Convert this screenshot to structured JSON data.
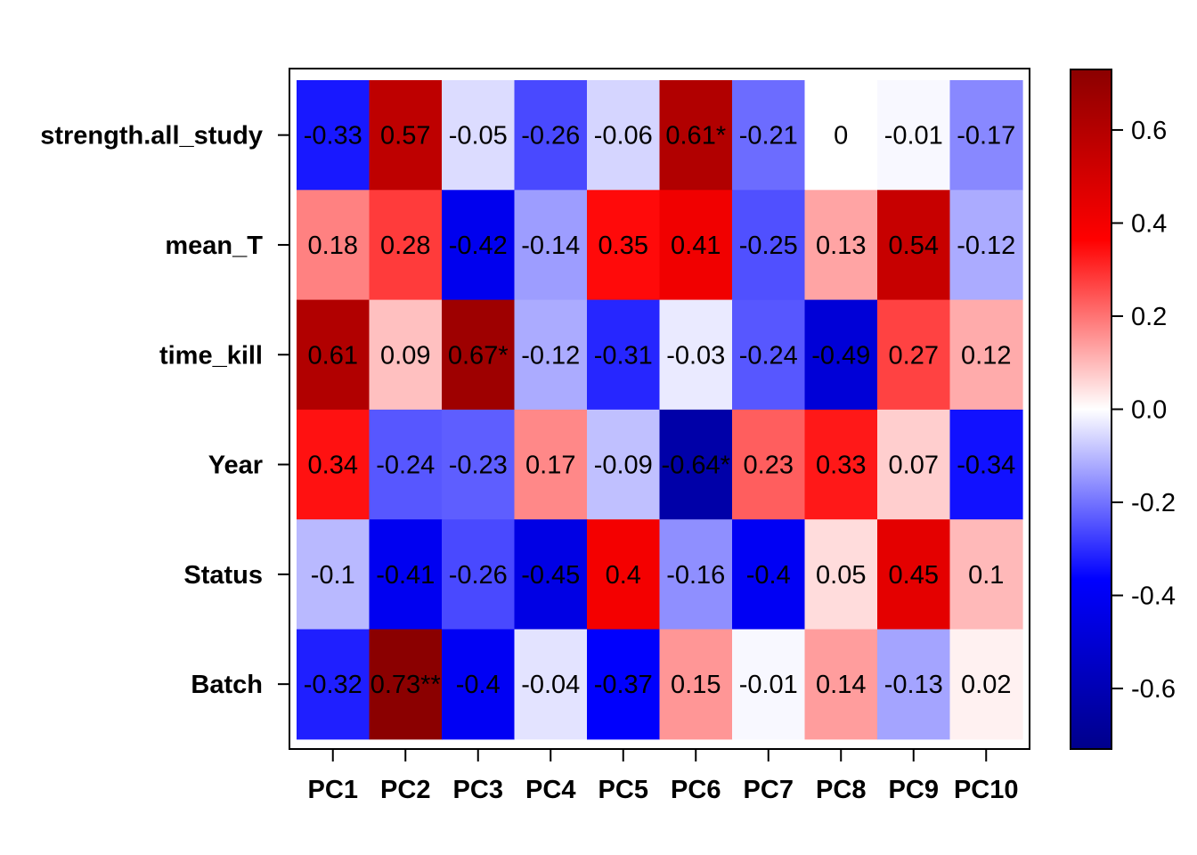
{
  "chart_data": {
    "type": "heatmap",
    "title": "",
    "xlabel": "",
    "ylabel": "",
    "columns": [
      "PC1",
      "PC2",
      "PC3",
      "PC4",
      "PC5",
      "PC6",
      "PC7",
      "PC8",
      "PC9",
      "PC10"
    ],
    "rows": [
      "strength.all_study",
      "mean_T",
      "time_kill",
      "Year",
      "Status",
      "Batch"
    ],
    "values": [
      [
        -0.33,
        0.57,
        -0.05,
        -0.26,
        -0.06,
        0.61,
        -0.21,
        0,
        -0.01,
        -0.17
      ],
      [
        0.18,
        0.28,
        -0.42,
        -0.14,
        0.35,
        0.41,
        -0.25,
        0.13,
        0.54,
        -0.12
      ],
      [
        0.61,
        0.09,
        0.67,
        -0.12,
        -0.31,
        -0.03,
        -0.24,
        -0.49,
        0.27,
        0.12
      ],
      [
        0.34,
        -0.24,
        -0.23,
        0.17,
        -0.09,
        -0.64,
        0.23,
        0.33,
        0.07,
        -0.34
      ],
      [
        -0.1,
        -0.41,
        -0.26,
        -0.45,
        0.4,
        -0.16,
        -0.4,
        0.05,
        0.45,
        0.1
      ],
      [
        -0.32,
        0.73,
        -0.4,
        -0.04,
        -0.37,
        0.15,
        -0.01,
        0.14,
        -0.13,
        0.02
      ]
    ],
    "labels": [
      [
        "-0.33",
        "0.57",
        "-0.05",
        "-0.26",
        "-0.06",
        "0.61*",
        "-0.21",
        "0",
        "-0.01",
        "-0.17"
      ],
      [
        "0.18",
        "0.28",
        "-0.42",
        "-0.14",
        "0.35",
        "0.41",
        "-0.25",
        "0.13",
        "0.54",
        "-0.12"
      ],
      [
        "0.61",
        "0.09",
        "0.67*",
        "-0.12",
        "-0.31",
        "-0.03",
        "-0.24",
        "-0.49",
        "0.27",
        "0.12"
      ],
      [
        "0.34",
        "-0.24",
        "-0.23",
        "0.17",
        "-0.09",
        "-0.64*",
        "0.23",
        "0.33",
        "0.07",
        "-0.34"
      ],
      [
        "-0.1",
        "-0.41",
        "-0.26",
        "-0.45",
        "0.4",
        "-0.16",
        "-0.4",
        "0.05",
        "0.45",
        "0.1"
      ],
      [
        "-0.32",
        "0.73**",
        "-0.4",
        "-0.04",
        "-0.37",
        "0.15",
        "-0.01",
        "0.14",
        "-0.13",
        "0.02"
      ]
    ],
    "colorbar": {
      "range": [
        -0.73,
        0.73
      ],
      "ticks": [
        0.6,
        0.4,
        0.2,
        0.0,
        -0.2,
        -0.4,
        -0.6
      ],
      "tick_labels": [
        "0.6",
        "0.4",
        "0.2",
        "0.0",
        "-0.2",
        "-0.4",
        "-0.6"
      ],
      "colors": [
        "#00008b",
        "#0000ff",
        "#ffffff",
        "#ff0000",
        "#8b0000"
      ]
    },
    "legend_placement": "right",
    "grid": false
  }
}
